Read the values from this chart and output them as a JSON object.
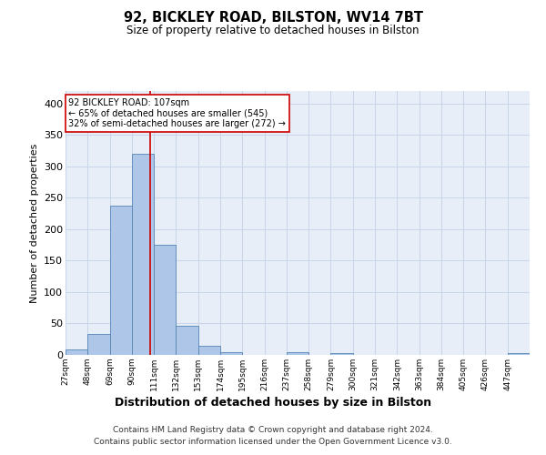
{
  "title1": "92, BICKLEY ROAD, BILSTON, WV14 7BT",
  "title2": "Size of property relative to detached houses in Bilston",
  "xlabel": "Distribution of detached houses by size in Bilston",
  "ylabel": "Number of detached properties",
  "bin_labels": [
    "27sqm",
    "48sqm",
    "69sqm",
    "90sqm",
    "111sqm",
    "132sqm",
    "153sqm",
    "174sqm",
    "195sqm",
    "216sqm",
    "237sqm",
    "258sqm",
    "279sqm",
    "300sqm",
    "321sqm",
    "342sqm",
    "363sqm",
    "384sqm",
    "405sqm",
    "426sqm",
    "447sqm"
  ],
  "bin_edges": [
    27,
    48,
    69,
    90,
    111,
    132,
    153,
    174,
    195,
    216,
    237,
    258,
    279,
    300,
    321,
    342,
    363,
    384,
    405,
    426,
    447
  ],
  "bar_heights": [
    8,
    33,
    237,
    320,
    175,
    46,
    15,
    5,
    0,
    0,
    5,
    0,
    3,
    0,
    0,
    0,
    0,
    0,
    0,
    0,
    3
  ],
  "bar_color": "#aec6e8",
  "bar_edge_color": "#5585b5",
  "property_line_x": 107,
  "property_line_color": "#cc0000",
  "annotation_line1": "92 BICKLEY ROAD: 107sqm",
  "annotation_line2": "← 65% of detached houses are smaller (545)",
  "annotation_line3": "32% of semi-detached houses are larger (272) →",
  "annotation_box_color": "#cc0000",
  "ylim": [
    0,
    420
  ],
  "yticks": [
    0,
    50,
    100,
    150,
    200,
    250,
    300,
    350,
    400
  ],
  "grid_color": "#c8d4e8",
  "background_color": "#e8eef8",
  "footer1": "Contains HM Land Registry data © Crown copyright and database right 2024.",
  "footer2": "Contains public sector information licensed under the Open Government Licence v3.0."
}
